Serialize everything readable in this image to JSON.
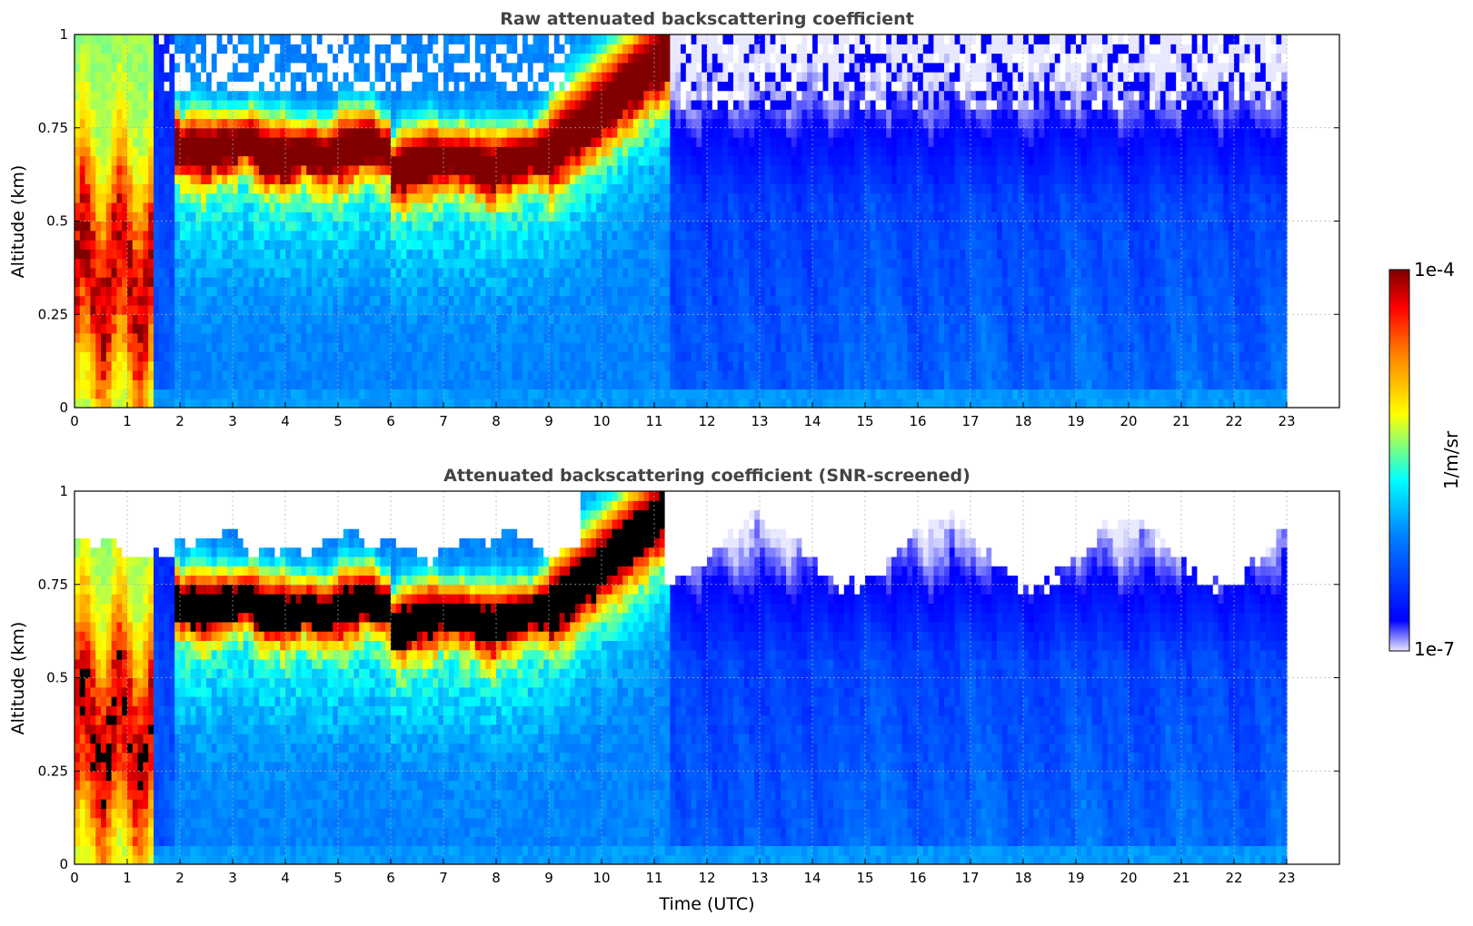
{
  "chart_data": [
    {
      "type": "heatmap",
      "title": "Raw attenuated backscattering coefficient",
      "xlabel": "",
      "ylabel": "Altitude (km)",
      "xlim": [
        0,
        24
      ],
      "ylim": [
        0,
        1
      ],
      "x_ticks": [
        "0",
        "1",
        "2",
        "3",
        "4",
        "5",
        "6",
        "7",
        "8",
        "9",
        "10",
        "11",
        "12",
        "13",
        "14",
        "15",
        "16",
        "17",
        "18",
        "19",
        "20",
        "21",
        "22",
        "23"
      ],
      "y_ticks": [
        "0",
        "0.25",
        "0.5",
        "0.75",
        "1"
      ],
      "grid": true,
      "data_extent_hours": [
        0,
        23
      ],
      "color_scale": "log",
      "colormap": "jet",
      "features": [
        {
          "name": "low aerosol/cloud layer",
          "time_start": 0.0,
          "time_end": 1.5,
          "altitude_km": [
            0.05,
            0.9
          ],
          "level": "high"
        },
        {
          "name": "elevated layer",
          "time_start": 2.0,
          "time_end": 9.0,
          "altitude_km": [
            0.55,
            0.85
          ],
          "level": "very high"
        },
        {
          "name": "rising layer",
          "time_start": 9.0,
          "time_end": 11.2,
          "altitude_km": [
            0.7,
            1.0
          ],
          "level": "very high"
        },
        {
          "name": "background boundary layer",
          "time_start": 1.5,
          "time_end": 23.0,
          "altitude_km": [
            0.0,
            0.6
          ],
          "level": "moderate"
        }
      ]
    },
    {
      "type": "heatmap",
      "title": "Attenuated backscattering coefficient (SNR-screened)",
      "xlabel": "Time (UTC)",
      "ylabel": "Altitude (km)",
      "xlim": [
        0,
        24
      ],
      "ylim": [
        0,
        1
      ],
      "x_ticks": [
        "0",
        "1",
        "2",
        "3",
        "4",
        "5",
        "6",
        "7",
        "8",
        "9",
        "10",
        "11",
        "12",
        "13",
        "14",
        "15",
        "16",
        "17",
        "18",
        "19",
        "20",
        "21",
        "22",
        "23"
      ],
      "y_ticks": [
        "0",
        "0.25",
        "0.5",
        "0.75",
        "1"
      ],
      "grid": true,
      "data_extent_hours": [
        0,
        23
      ],
      "color_scale": "log",
      "colormap": "jet",
      "over_range_color": "#000000",
      "screened_color": "#ffffff"
    }
  ],
  "colorbar": {
    "label": "1/m/sr",
    "max_label": "1e-4",
    "min_label": "1e-7",
    "colors": [
      "#e8e8ff",
      "#0000ff",
      "#0080ff",
      "#00ffff",
      "#ffff00",
      "#ff8000",
      "#ff0000",
      "#800000"
    ]
  }
}
